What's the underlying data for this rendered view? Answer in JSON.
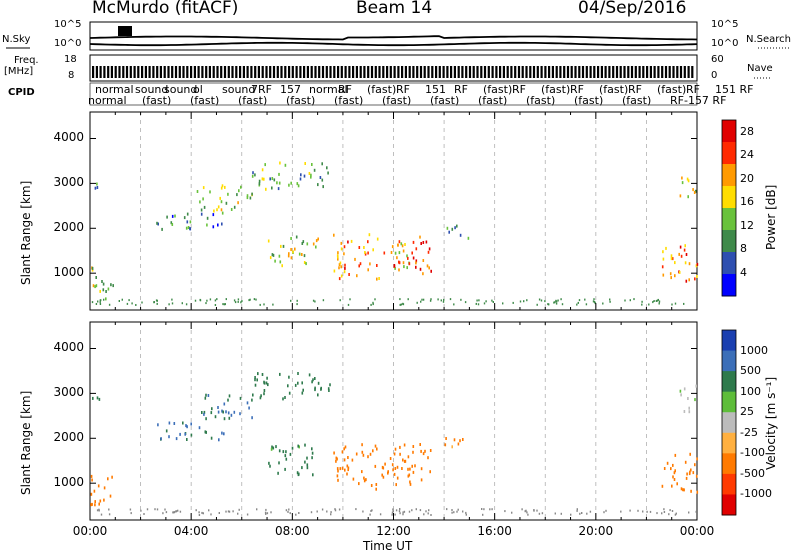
{
  "header": {
    "station": "McMurdo (fitACF)",
    "beam": "Beam 14",
    "date": "04/Sep/2016"
  },
  "sidepanel": {
    "nsky_label": "N.Sky",
    "nsearch_label": "N.Search",
    "freq_label_1": "Freq.",
    "freq_label_2": "[MHz]",
    "nave_label": "Nave",
    "cpid_label": "CPID",
    "noise_ticks_left": [
      "10^5",
      "10^0"
    ],
    "noise_ticks_right": [
      "10^5",
      "10^0"
    ],
    "freq_ticks": [
      "18",
      "8"
    ],
    "nave_ticks": [
      "60",
      "0"
    ],
    "cpid_row1": "normal",
    "cpid_row2": "normal",
    "cpid_labels_row1": [
      "sound",
      "sound",
      "ol",
      "sound",
      "7RF",
      "157",
      "normal",
      "RF",
      "(fast)",
      "RF",
      "151",
      "RF",
      "(fast)",
      "RF",
      "(fast)",
      "RF",
      "(fast)",
      "RF",
      "(fast)",
      "RF",
      "151 RF"
    ],
    "cpid_labels_row2": [
      "(fast)",
      "(fast)",
      "(fast)",
      "(fast)",
      "(fast)",
      "(fast)",
      "(fast)",
      "(fast)",
      "(fast)",
      "(fast)",
      "(fast)",
      "RF-157 RF"
    ]
  },
  "chart_data": [
    {
      "type": "heatmap",
      "name": "power",
      "xlabel": "",
      "ylabel": "Slant Range [km]",
      "xlim": [
        0,
        24
      ],
      "ylim": [
        180,
        4590
      ],
      "yticks": [
        1000,
        2000,
        3000,
        4000
      ],
      "colorbar_label": "Power [dB]",
      "colorbar_ticks": [
        4,
        8,
        12,
        16,
        20,
        24,
        28
      ],
      "colorbar_range": [
        0,
        30
      ],
      "colorscale": [
        "#0000ff",
        "#2e4fb0",
        "#3f8a4a",
        "#69c23c",
        "#ffdd00",
        "#ff9a00",
        "#ff2a00",
        "#e00000"
      ],
      "echo_regions": [
        {
          "t0": 0.0,
          "t1": 0.9,
          "r0": 400,
          "r1": 1200,
          "value": 14
        },
        {
          "t0": 0.0,
          "t1": 0.4,
          "r0": 2900,
          "r1": 3200,
          "value": 10
        },
        {
          "t0": 2.6,
          "t1": 5.3,
          "r0": 2000,
          "r1": 2400,
          "value": 8
        },
        {
          "t0": 4.2,
          "t1": 6.4,
          "r0": 2400,
          "r1": 3000,
          "value": 14
        },
        {
          "t0": 6.4,
          "t1": 9.5,
          "r0": 2900,
          "r1": 3500,
          "value": 12
        },
        {
          "t0": 7.0,
          "t1": 9.0,
          "r0": 1200,
          "r1": 1900,
          "value": 16
        },
        {
          "t0": 9.6,
          "t1": 11.4,
          "r0": 900,
          "r1": 1900,
          "value": 21
        },
        {
          "t0": 11.5,
          "t1": 12.6,
          "r0": 1100,
          "r1": 1700,
          "value": 18
        },
        {
          "t0": 12.0,
          "t1": 13.5,
          "r0": 1000,
          "r1": 1900,
          "value": 24
        },
        {
          "t0": 14.0,
          "t1": 15.0,
          "r0": 1800,
          "r1": 2100,
          "value": 8
        },
        {
          "t0": 22.6,
          "t1": 24.0,
          "r0": 800,
          "r1": 1700,
          "value": 22
        },
        {
          "t0": 23.3,
          "t1": 24.0,
          "r0": 2600,
          "r1": 3200,
          "value": 16
        }
      ]
    },
    {
      "type": "heatmap",
      "name": "velocity",
      "xlabel": "Time UT",
      "ylabel": "Slant Range [km]",
      "xlim": [
        0,
        24
      ],
      "ylim": [
        180,
        4590
      ],
      "xticks": [
        "00:00",
        "04:00",
        "08:00",
        "12:00",
        "16:00",
        "20:00",
        "00:00"
      ],
      "yticks": [
        1000,
        2000,
        3000,
        4000
      ],
      "colorbar_label": "Velocity [m s⁻¹]",
      "colorbar_ticks": [
        "1000",
        "500",
        "100",
        "25",
        "-25",
        "-100",
        "-500",
        "-1000"
      ],
      "colorscale": [
        "#1a3fb0",
        "#3c6fb8",
        "#2e7a4c",
        "#5ebd3a",
        "#bcbcbc",
        "#ffb040",
        "#ff7a00",
        "#ff3a00",
        "#e00000"
      ],
      "echo_regions": [
        {
          "t0": 0.0,
          "t1": 0.9,
          "r0": 400,
          "r1": 1200,
          "value": -200
        },
        {
          "t0": 0.0,
          "t1": 0.4,
          "r0": 2900,
          "r1": 3200,
          "value": 300
        },
        {
          "t0": 2.6,
          "t1": 5.3,
          "r0": 2000,
          "r1": 2400,
          "value": 600
        },
        {
          "t0": 4.2,
          "t1": 6.4,
          "r0": 2400,
          "r1": 3000,
          "value": 500
        },
        {
          "t0": 6.4,
          "t1": 9.5,
          "r0": 2900,
          "r1": 3500,
          "value": 300
        },
        {
          "t0": 7.0,
          "t1": 9.0,
          "r0": 1200,
          "r1": 1900,
          "value": 150
        },
        {
          "t0": 9.6,
          "t1": 11.4,
          "r0": 900,
          "r1": 1900,
          "value": -300
        },
        {
          "t0": 11.5,
          "t1": 12.6,
          "r0": 1100,
          "r1": 1700,
          "value": -200
        },
        {
          "t0": 12.0,
          "t1": 13.5,
          "r0": 1000,
          "r1": 1900,
          "value": -250
        },
        {
          "t0": 14.0,
          "t1": 15.0,
          "r0": 1800,
          "r1": 2100,
          "value": -150
        },
        {
          "t0": 22.6,
          "t1": 24.0,
          "r0": 800,
          "r1": 1700,
          "value": -300
        },
        {
          "t0": 23.3,
          "t1": 24.0,
          "r0": 2600,
          "r1": 3200,
          "value": 20
        }
      ]
    }
  ]
}
